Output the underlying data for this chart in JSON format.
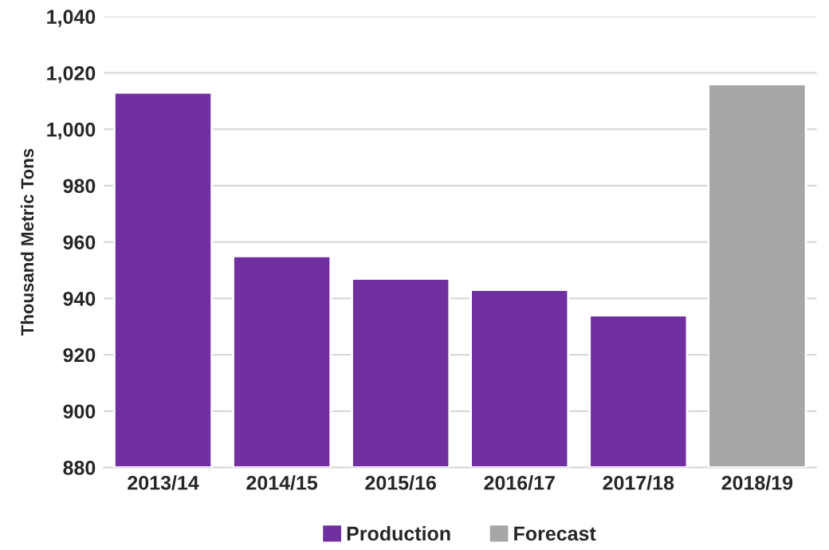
{
  "chart_data": {
    "type": "bar",
    "ylabel": "Thousand Metric Tons",
    "categories": [
      "2013/14",
      "2014/15",
      "2015/16",
      "2016/17",
      "2017/18",
      "2018/19"
    ],
    "series": [
      {
        "name": "Production",
        "color": "#7030a0",
        "values": [
          1013,
          955,
          947,
          943,
          934,
          null
        ]
      },
      {
        "name": "Forecast",
        "color": "#a6a6a6",
        "values": [
          null,
          null,
          null,
          null,
          null,
          1016
        ]
      }
    ],
    "ylim": [
      880,
      1040
    ],
    "yticks": [
      {
        "value": 880,
        "label": "880"
      },
      {
        "value": 900,
        "label": "900"
      },
      {
        "value": 920,
        "label": "920"
      },
      {
        "value": 940,
        "label": "940"
      },
      {
        "value": 960,
        "label": "960"
      },
      {
        "value": 980,
        "label": "980"
      },
      {
        "value": 1000,
        "label": "1,000"
      },
      {
        "value": 1020,
        "label": "1,020"
      },
      {
        "value": 1040,
        "label": "1,040"
      }
    ],
    "grid": "y",
    "legend": "bottom"
  }
}
